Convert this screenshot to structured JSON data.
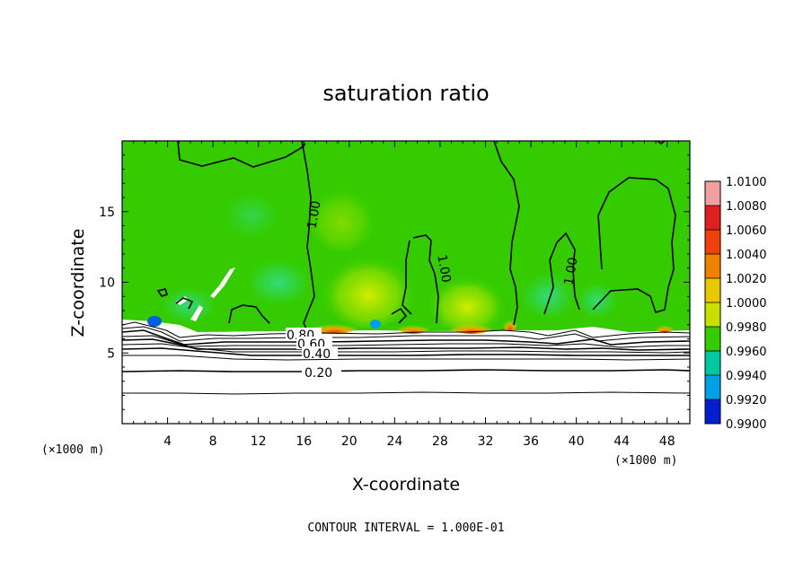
{
  "chart_data": {
    "type": "heatmap",
    "title": "saturation ratio",
    "xlabel": "X-coordinate",
    "ylabel": "Z-coordinate",
    "x_unit_note": "(×1000 m)",
    "y_unit_note": "(×1000 m)",
    "xlim": [
      0,
      50
    ],
    "ylim": [
      0,
      20
    ],
    "x_ticks": [
      4,
      8,
      12,
      16,
      20,
      24,
      28,
      32,
      36,
      40,
      44,
      48
    ],
    "y_ticks": [
      5,
      10,
      15
    ],
    "colorbar": {
      "levels": [
        "1.0100",
        "1.0080",
        "1.0060",
        "1.0040",
        "1.0020",
        "1.0000",
        "0.9980",
        "0.9960",
        "0.9940",
        "0.9920",
        "0.9900"
      ],
      "colors": [
        "#f0a0a0",
        "#e02020",
        "#f04010",
        "#f08000",
        "#e8c800",
        "#c8e000",
        "#32cc00",
        "#00c8a0",
        "#00a0e8",
        "#0020d0",
        "#6000a0"
      ]
    },
    "contour_labels": [
      "1.00",
      "1.00",
      "1.00",
      "0.80",
      "0.60",
      "0.40",
      "0.20"
    ],
    "footer": "CONTOUR INTERVAL = 1.000E-01"
  }
}
